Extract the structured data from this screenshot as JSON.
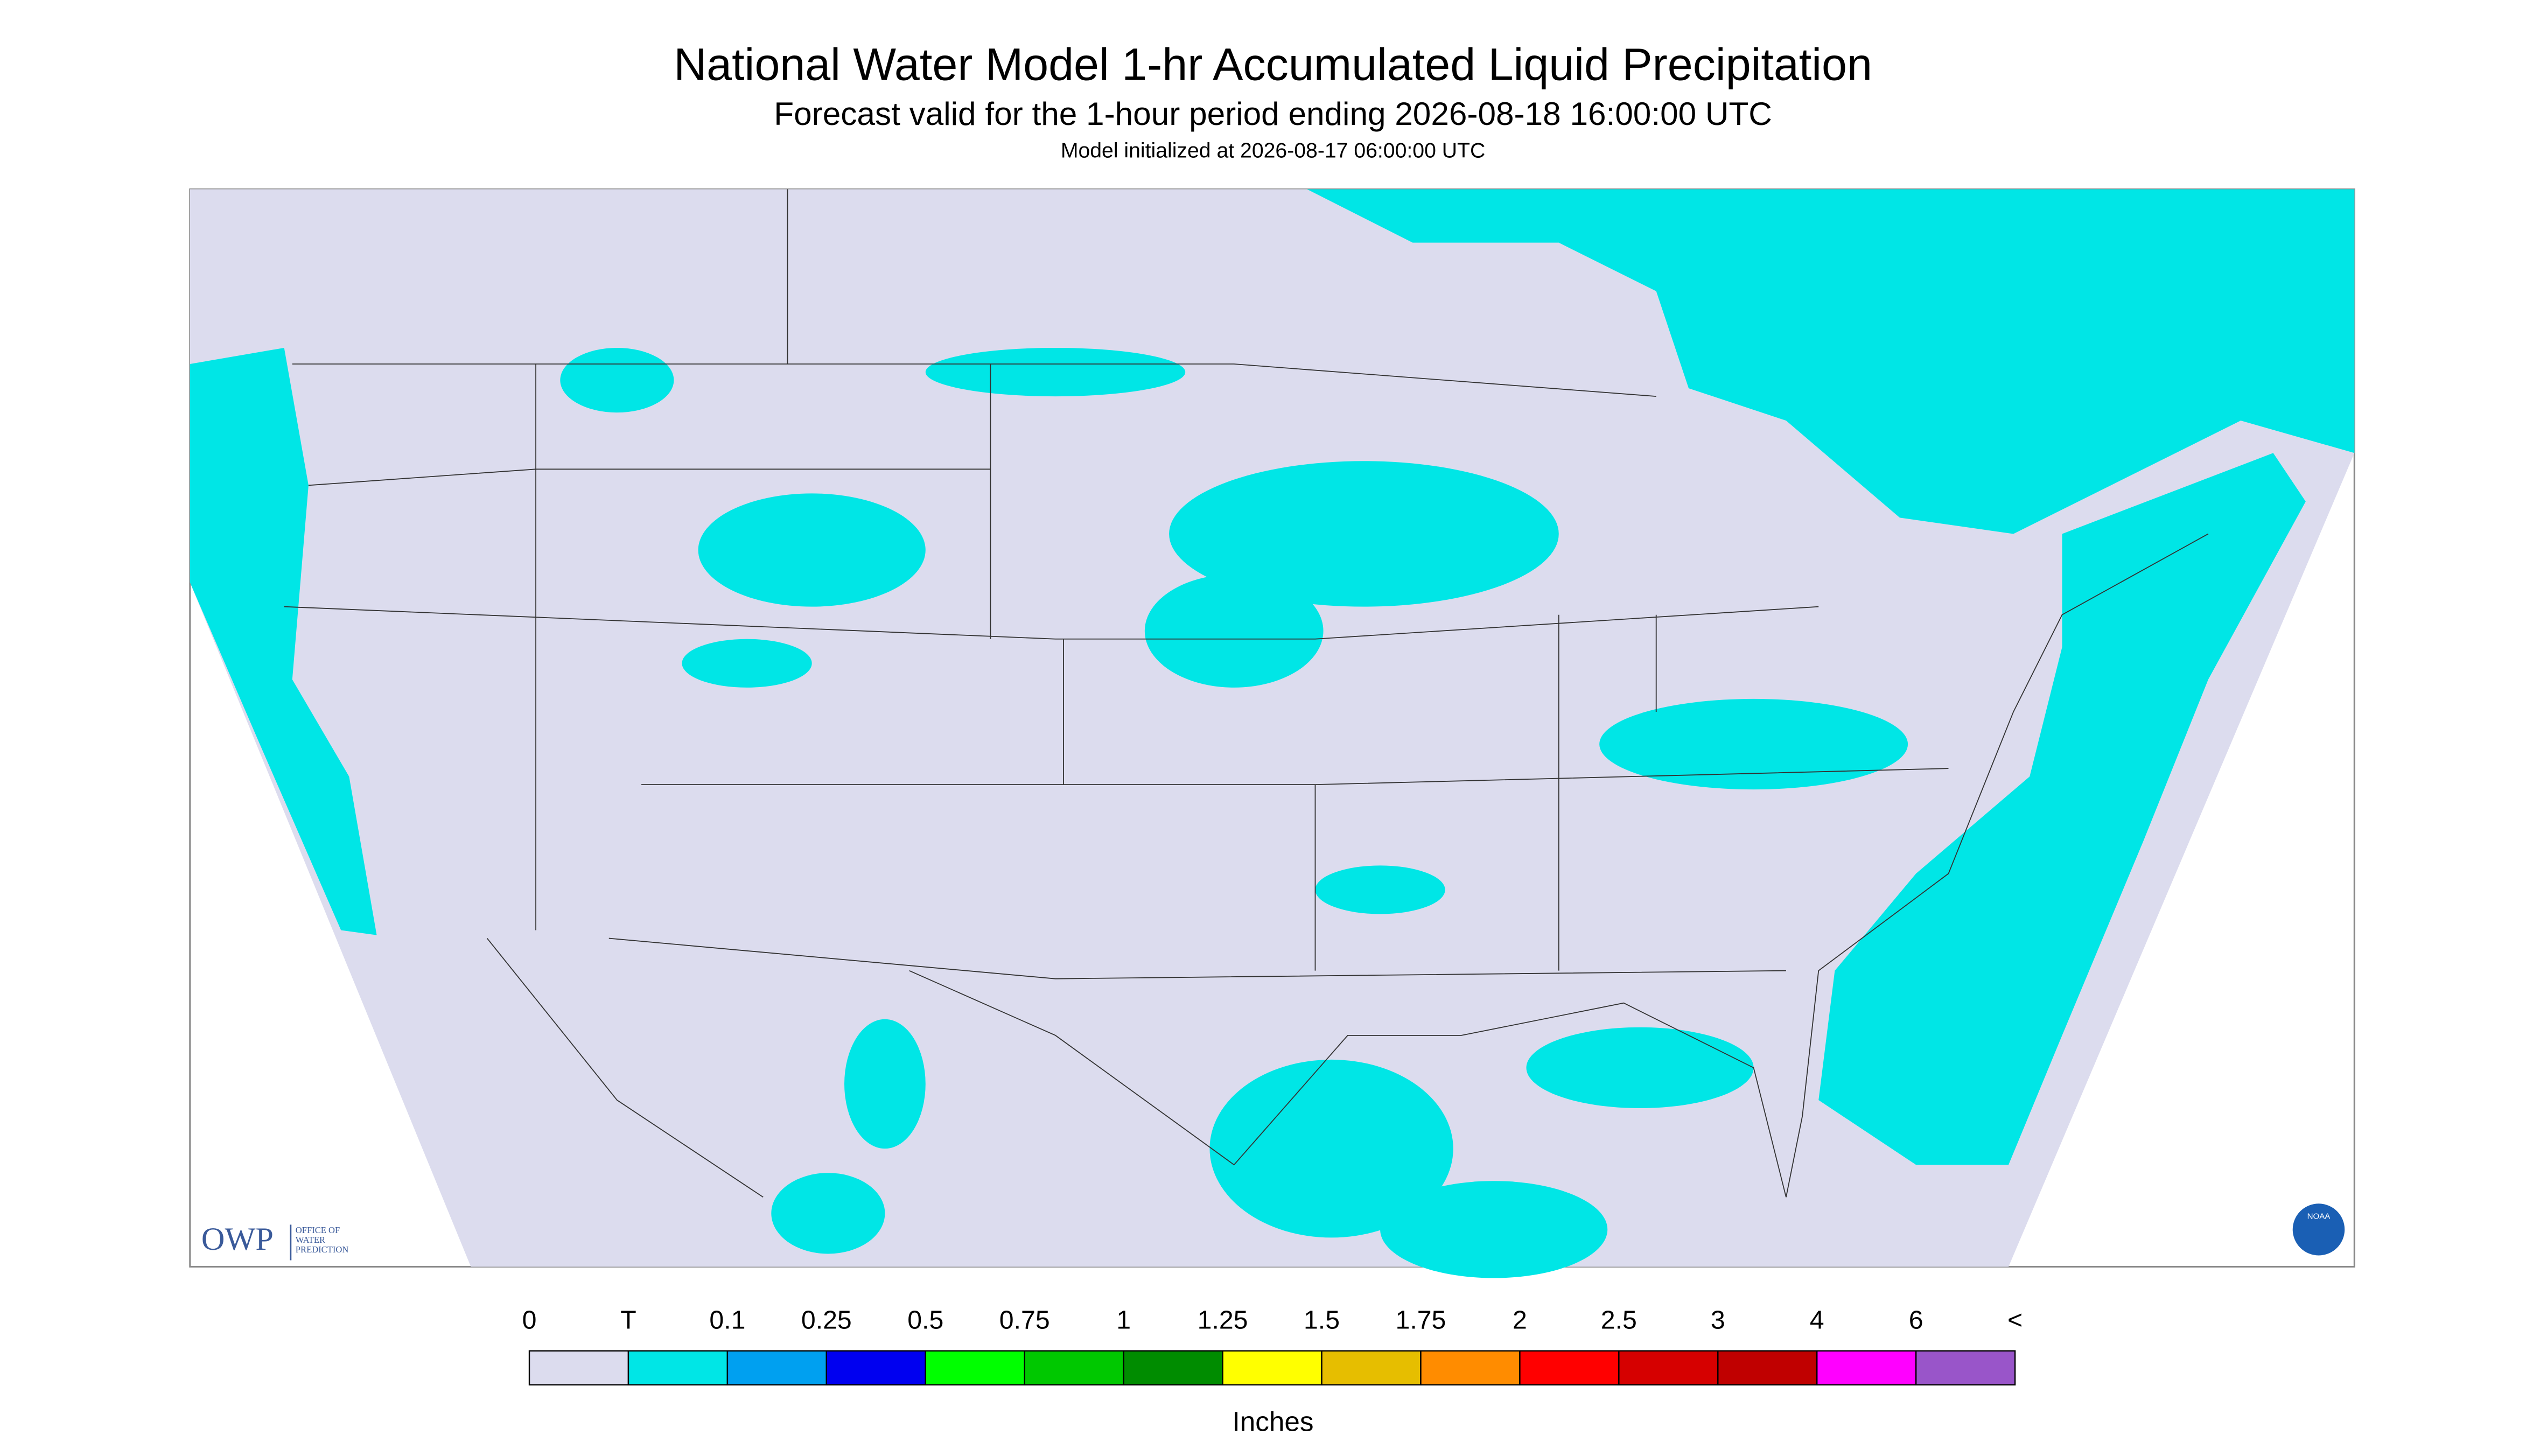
{
  "header": {
    "title": "National Water Model 1-hr Accumulated Liquid Precipitation",
    "subtitle": "Forecast valid for the 1-hour period ending 2026-08-18 16:00:00 UTC",
    "initialized": "Model initialized at 2026-08-17 06:00:00 UTC"
  },
  "map": {
    "logo": {
      "name": "OWP",
      "text": [
        "OFFICE OF",
        "WATER",
        "PREDICTION"
      ]
    },
    "badge": "NOAA"
  },
  "legend": {
    "labels": [
      "0",
      "T",
      "0.1",
      "0.25",
      "0.5",
      "0.75",
      "1",
      "1.25",
      "1.5",
      "1.75",
      "2",
      "2.5",
      "3",
      "4",
      "6",
      "<"
    ],
    "colors": [
      "#dcdcee",
      "#00e6e6",
      "#00a0f0",
      "#0000f0",
      "#00ff00",
      "#00c800",
      "#008c00",
      "#ffff00",
      "#e6be00",
      "#ff8c00",
      "#ff0000",
      "#d60000",
      "#c00000",
      "#ff00ff",
      "#9955c9"
    ],
    "unit": "Inches"
  }
}
